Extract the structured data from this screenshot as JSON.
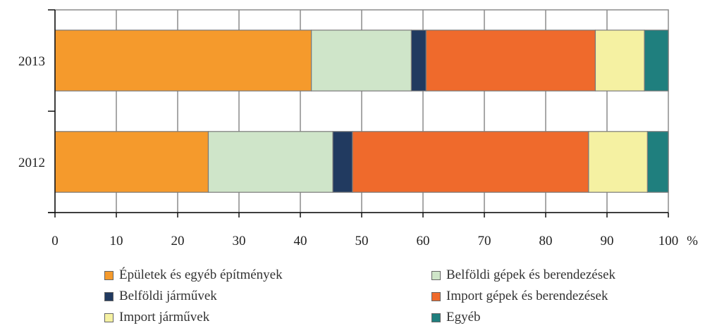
{
  "chart_data": {
    "type": "bar",
    "orientation": "horizontal",
    "stacked": true,
    "categories": [
      "2013",
      "2012"
    ],
    "series": [
      {
        "name": "Épületek és egyéb építmények",
        "values": [
          41.8,
          25.0
        ],
        "color": "#f59a2c"
      },
      {
        "name": "Belföldi gépek és berendezések",
        "values": [
          16.3,
          20.3
        ],
        "color": "#cfe5c9"
      },
      {
        "name": "Belföldi járművek",
        "values": [
          2.4,
          3.2
        ],
        "color": "#213a60"
      },
      {
        "name": "Import gépek és berendezések",
        "values": [
          27.6,
          38.5
        ],
        "color": "#ef6a2c"
      },
      {
        "name": "Import járművek",
        "values": [
          8.0,
          9.6
        ],
        "color": "#f5f1a2"
      },
      {
        "name": "Egyéb",
        "values": [
          3.9,
          3.4
        ],
        "color": "#1f7f7e"
      }
    ],
    "xlim": [
      0,
      100
    ],
    "xticks": [
      0,
      10,
      20,
      30,
      40,
      50,
      60,
      70,
      80,
      90,
      100
    ],
    "xunit": "%",
    "grid": true,
    "legend_position": "bottom"
  }
}
